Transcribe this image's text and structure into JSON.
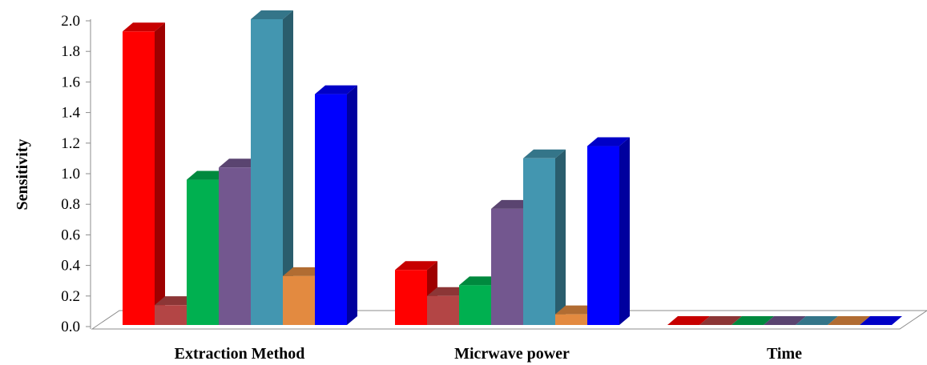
{
  "chart_data": {
    "type": "bar",
    "title": "",
    "xlabel": "",
    "ylabel": "Sensitivity",
    "ylim": [
      0,
      2
    ],
    "yticks": [
      "0.0",
      "0.2",
      "0.4",
      "0.6",
      "0.8",
      "1.0",
      "1.2",
      "1.4",
      "1.6",
      "1.8",
      "2.0"
    ],
    "categories": [
      "Extraction Method",
      "Micrwave power",
      "Time"
    ],
    "grid": false,
    "legend": "none",
    "style": "3d-clustered-column",
    "series": [
      {
        "color": "#ff0000",
        "values": [
          1.92,
          0.36,
          0.0
        ]
      },
      {
        "color": "#b34545",
        "values": [
          0.13,
          0.19,
          0.0
        ]
      },
      {
        "color": "#00b050",
        "values": [
          0.95,
          0.26,
          0.0
        ]
      },
      {
        "color": "#73578f",
        "values": [
          1.03,
          0.76,
          0.0
        ]
      },
      {
        "color": "#4396b0",
        "values": [
          2.0,
          1.09,
          0.0
        ]
      },
      {
        "color": "#e38a40",
        "values": [
          0.32,
          0.07,
          0.0
        ]
      },
      {
        "color": "#0000ff",
        "values": [
          1.51,
          1.17,
          0.0
        ]
      }
    ]
  }
}
